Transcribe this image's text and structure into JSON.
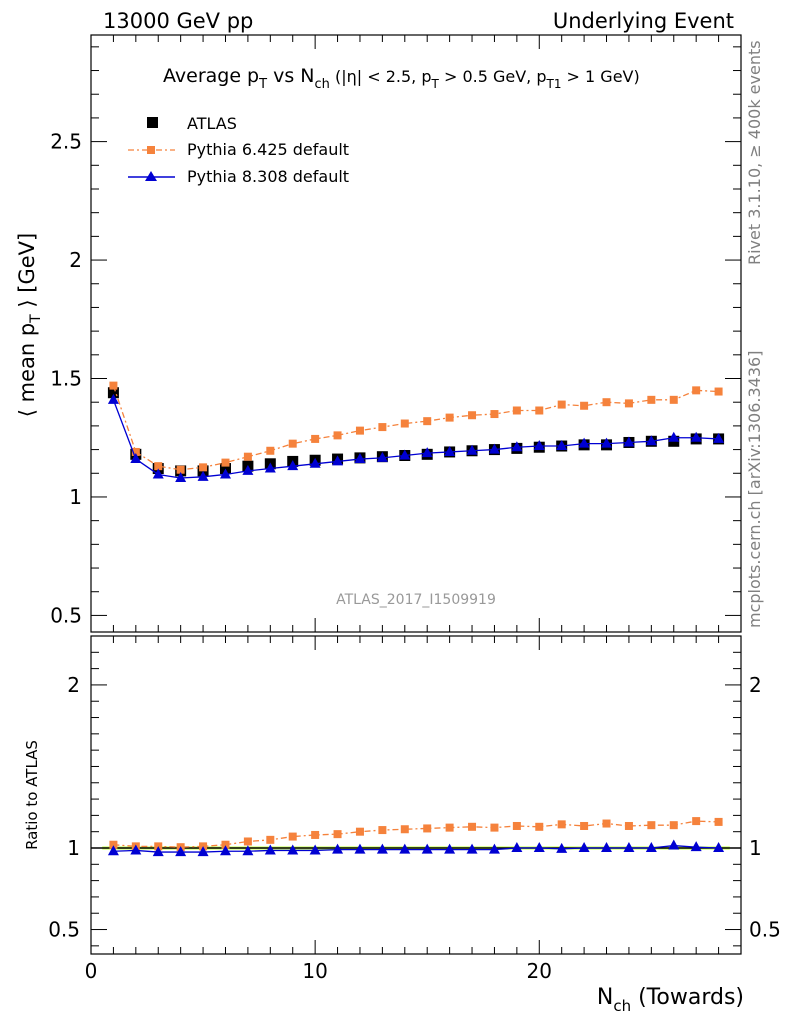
{
  "header": {
    "left": "13000 GeV pp",
    "right": "Underlying Event"
  },
  "side_text": {
    "top": "Rivet 3.1.10, ≥ 400k events",
    "bottom": "mcplots.cern.ch [arXiv:1306.3436]"
  },
  "reference_label": "ATLAS_2017_I1509919",
  "colors": {
    "atlas": "#000000",
    "pythia6": "#f5823c",
    "pythia8": "#0000d2",
    "band": "#ccff66"
  },
  "chart_data": [
    {
      "type": "scatter",
      "title": {
        "pre": "Average p",
        "pre_sub": "T",
        "mid": " vs N",
        "mid_sub": "ch",
        "cut1": " (|η| < 2.5, p",
        "cut1_sub": "T",
        "cut2": " > 0.5 GeV, p",
        "cut2_sub": "T1",
        "cut3": " > 1 GeV)"
      },
      "ylabel": {
        "pre": "⟨ mean p",
        "sub": "T",
        "post": " ⟩ [GeV]"
      },
      "xlim": [
        0,
        29
      ],
      "ylim": [
        0.43,
        2.95
      ],
      "y_ticks": [
        "0.5",
        "1",
        "1.5",
        "2",
        "2.5"
      ],
      "legend": [
        "ATLAS",
        "Pythia 6.425 default",
        "Pythia 8.308 default"
      ],
      "x": [
        1,
        2,
        3,
        4,
        5,
        6,
        7,
        8,
        9,
        10,
        11,
        12,
        13,
        14,
        15,
        16,
        17,
        18,
        19,
        20,
        21,
        22,
        23,
        24,
        25,
        26,
        27,
        28
      ],
      "series": [
        {
          "name": "ATLAS",
          "values": [
            1.44,
            1.18,
            1.12,
            1.11,
            1.11,
            1.12,
            1.13,
            1.14,
            1.15,
            1.155,
            1.16,
            1.165,
            1.17,
            1.175,
            1.18,
            1.19,
            1.195,
            1.2,
            1.205,
            1.21,
            1.215,
            1.22,
            1.22,
            1.23,
            1.235,
            1.235,
            1.245,
            1.245
          ]
        },
        {
          "name": "Pythia 6.425 default",
          "values": [
            1.47,
            1.19,
            1.13,
            1.115,
            1.125,
            1.145,
            1.17,
            1.195,
            1.225,
            1.245,
            1.26,
            1.28,
            1.295,
            1.31,
            1.32,
            1.335,
            1.345,
            1.35,
            1.365,
            1.365,
            1.39,
            1.385,
            1.4,
            1.395,
            1.41,
            1.41,
            1.45,
            1.445
          ]
        },
        {
          "name": "Pythia 8.308 default",
          "values": [
            1.41,
            1.16,
            1.095,
            1.08,
            1.085,
            1.095,
            1.11,
            1.12,
            1.13,
            1.14,
            1.15,
            1.16,
            1.165,
            1.175,
            1.185,
            1.19,
            1.195,
            1.2,
            1.21,
            1.215,
            1.215,
            1.225,
            1.225,
            1.23,
            1.235,
            1.25,
            1.25,
            1.245
          ]
        }
      ]
    },
    {
      "type": "line",
      "ylabel": "Ratio to ATLAS",
      "xlabel": {
        "pre": "N",
        "sub": "ch",
        "post": " (Towards)"
      },
      "xlim": [
        0,
        29
      ],
      "ylim": [
        0.35,
        2.3
      ],
      "x_ticks": [
        "0",
        "10",
        "20"
      ],
      "y_ticks": [
        "0.5",
        "1",
        "2"
      ],
      "x": [
        1,
        2,
        3,
        4,
        5,
        6,
        7,
        8,
        9,
        10,
        11,
        12,
        13,
        14,
        15,
        16,
        17,
        18,
        19,
        20,
        21,
        22,
        23,
        24,
        25,
        26,
        27,
        28
      ],
      "series": [
        {
          "name": "Pythia 6.425 default",
          "values": [
            1.02,
            1.01,
            1.01,
            1.005,
            1.01,
            1.02,
            1.04,
            1.05,
            1.07,
            1.08,
            1.085,
            1.1,
            1.11,
            1.115,
            1.12,
            1.125,
            1.13,
            1.125,
            1.135,
            1.13,
            1.145,
            1.135,
            1.15,
            1.135,
            1.14,
            1.14,
            1.165,
            1.16
          ]
        },
        {
          "name": "Pythia 8.308 default",
          "values": [
            0.98,
            0.985,
            0.975,
            0.975,
            0.975,
            0.98,
            0.98,
            0.985,
            0.985,
            0.985,
            0.99,
            0.99,
            0.99,
            0.99,
            0.99,
            0.99,
            0.99,
            0.99,
            1.0,
            1.0,
            0.995,
            1.0,
            1.0,
            1.0,
            1.0,
            1.015,
            1.005,
            1.0
          ]
        }
      ]
    }
  ]
}
